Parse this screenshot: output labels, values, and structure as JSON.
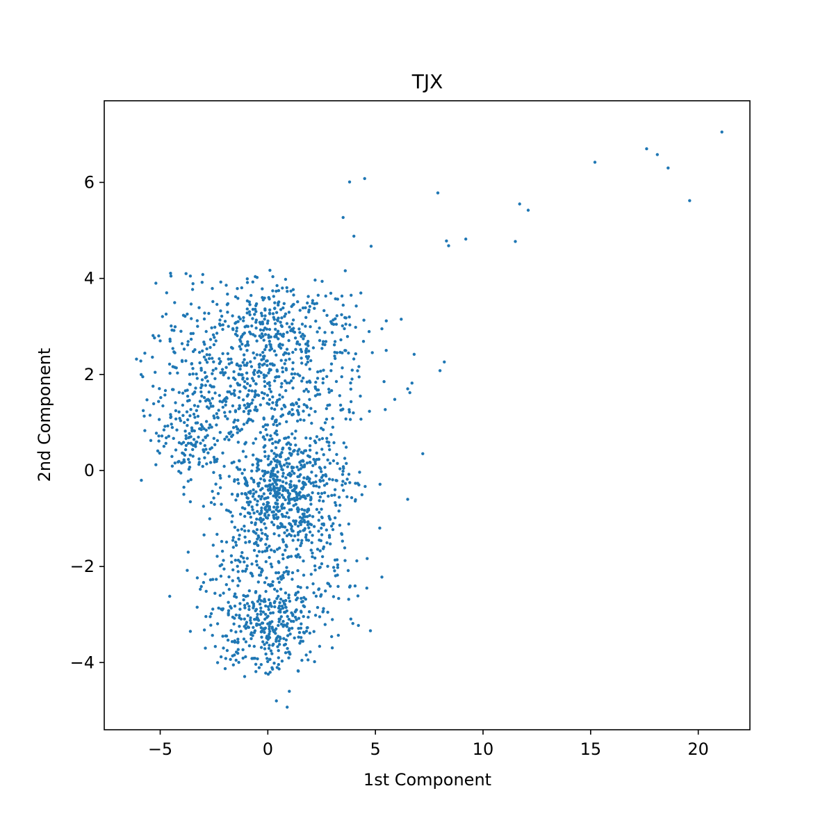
{
  "chart_data": {
    "type": "scatter",
    "title": "TJX",
    "xlabel": "1st Component",
    "ylabel": "2nd Component",
    "xlim": [
      -7.6,
      22.4
    ],
    "ylim": [
      -5.4,
      7.7
    ],
    "xticks": [
      -5,
      0,
      5,
      10,
      15,
      20
    ],
    "yticks": [
      -4,
      -2,
      0,
      2,
      4,
      6
    ],
    "grid": false,
    "legend": "none",
    "color": "#1f77b4",
    "series": [
      {
        "cluster_summary": "dense cloud of ~2000 points roughly spanning x -6 to 6, y -5 to 4.2",
        "points": [
          [
            21.1,
            7.05
          ],
          [
            17.6,
            6.7
          ],
          [
            18.1,
            6.58
          ],
          [
            18.6,
            6.3
          ],
          [
            15.2,
            6.42
          ],
          [
            19.6,
            5.62
          ],
          [
            11.7,
            5.55
          ],
          [
            12.1,
            5.42
          ],
          [
            11.5,
            4.77
          ],
          [
            9.2,
            4.82
          ],
          [
            8.3,
            4.78
          ],
          [
            8.4,
            4.68
          ],
          [
            7.9,
            5.78
          ],
          [
            4.5,
            6.08
          ],
          [
            3.8,
            6.01
          ],
          [
            3.5,
            5.27
          ],
          [
            4.0,
            4.88
          ],
          [
            4.8,
            4.67
          ],
          [
            3.6,
            4.16
          ],
          [
            6.2,
            3.15
          ],
          [
            5.3,
            2.95
          ],
          [
            5.5,
            2.5
          ],
          [
            6.8,
            2.42
          ],
          [
            8.2,
            2.26
          ],
          [
            8.0,
            2.08
          ],
          [
            5.4,
            1.85
          ],
          [
            6.7,
            1.82
          ],
          [
            6.5,
            1.7
          ],
          [
            6.6,
            1.62
          ],
          [
            5.9,
            1.48
          ],
          [
            4.3,
            1.55
          ],
          [
            7.2,
            0.35
          ],
          [
            6.5,
            -0.6
          ],
          [
            5.2,
            -1.2
          ],
          [
            5.3,
            -2.22
          ],
          [
            4.6,
            -2.45
          ],
          [
            1.0,
            -4.6
          ],
          [
            0.4,
            -4.8
          ],
          [
            0.9,
            -4.93
          ],
          [
            -6.1,
            2.32
          ],
          [
            -5.9,
            2.28
          ],
          [
            -5.0,
            2.7
          ],
          [
            -4.5,
            4.05
          ],
          [
            -5.2,
            3.9
          ],
          [
            -4.7,
            3.7
          ],
          [
            -3.8,
            4.1
          ],
          [
            -3.6,
            4.05
          ],
          [
            -5.2,
            0.12
          ],
          [
            -3.9,
            -0.35
          ],
          [
            -3.6,
            -0.65
          ],
          [
            -3.7,
            -1.7
          ],
          [
            -3.6,
            -3.35
          ],
          [
            -2.9,
            -3.7
          ],
          [
            -1.6,
            -4.05
          ],
          [
            -0.1,
            -4.22
          ],
          [
            -0.5,
            4.02
          ],
          [
            0.1,
            4.17
          ]
        ]
      }
    ]
  }
}
